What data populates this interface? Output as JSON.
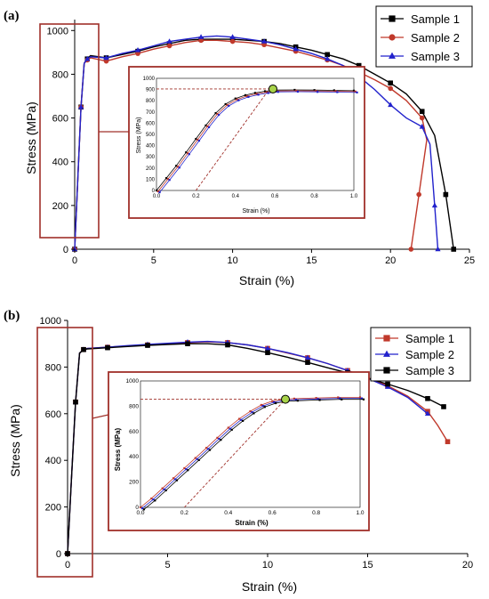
{
  "chart_data": [
    {
      "panel": "(a)",
      "type": "line",
      "xlabel": "Strain (%)",
      "ylabel": "Stress (MPa)",
      "xlim": [
        0,
        25
      ],
      "ylim": [
        0,
        1050
      ],
      "xticks": [
        "0",
        "5",
        "10",
        "15",
        "20",
        "25"
      ],
      "yticks": [
        "0",
        "200",
        "400",
        "600",
        "800",
        "1000"
      ],
      "legend_position": "top-right",
      "series": [
        {
          "name": "Sample 1",
          "color": "#000000",
          "marker": "square",
          "x": [
            0,
            0.2,
            0.4,
            0.6,
            0.8,
            1,
            2,
            3,
            4,
            5,
            6,
            7,
            8,
            9,
            10,
            11,
            12,
            13,
            14,
            15,
            16,
            17,
            18,
            19,
            20,
            21,
            22,
            22.8,
            23.5,
            24
          ],
          "y": [
            0,
            330,
            650,
            850,
            870,
            885,
            875,
            890,
            905,
            925,
            940,
            955,
            960,
            960,
            960,
            955,
            950,
            940,
            925,
            910,
            890,
            870,
            840,
            800,
            760,
            710,
            630,
            520,
            250,
            0
          ]
        },
        {
          "name": "Sample 2",
          "color": "#c0392b",
          "marker": "circle",
          "x": [
            0,
            0.2,
            0.4,
            0.6,
            0.8,
            1,
            2,
            3,
            4,
            5,
            6,
            7,
            8,
            9,
            10,
            11,
            12,
            13,
            14,
            15,
            16,
            17,
            18,
            19,
            20,
            21,
            22,
            22.3,
            21.8,
            21.3
          ],
          "y": [
            0,
            330,
            650,
            850,
            865,
            875,
            860,
            880,
            895,
            915,
            930,
            945,
            955,
            955,
            950,
            945,
            935,
            920,
            905,
            885,
            865,
            840,
            810,
            775,
            735,
            680,
            600,
            500,
            250,
            0
          ]
        },
        {
          "name": "Sample 3",
          "color": "#2222cc",
          "marker": "triangle",
          "x": [
            0,
            0.2,
            0.4,
            0.6,
            0.8,
            1,
            2,
            3,
            4,
            5,
            6,
            7,
            8,
            9,
            10,
            11,
            12,
            13,
            14,
            15,
            16,
            17,
            18,
            19,
            20,
            21,
            22,
            22.5,
            22.8,
            23
          ],
          "y": [
            0,
            330,
            650,
            850,
            870,
            880,
            875,
            895,
            910,
            930,
            950,
            960,
            970,
            975,
            970,
            960,
            950,
            935,
            915,
            895,
            870,
            840,
            790,
            730,
            660,
            600,
            560,
            480,
            200,
            0
          ]
        }
      ],
      "inset": {
        "xlabel": "Strain (%)",
        "ylabel": "Stress (MPa)",
        "xlim": [
          0,
          1.0
        ],
        "ylim": [
          0,
          1000
        ],
        "xticks": [
          "0.0",
          "0.2",
          "0.4",
          "0.6",
          "0.8",
          "1.0"
        ],
        "yticks": [
          "0",
          "100",
          "200",
          "300",
          "400",
          "500",
          "600",
          "700",
          "800",
          "900",
          "1000"
        ],
        "x": [
          0,
          0.05,
          0.1,
          0.15,
          0.2,
          0.25,
          0.3,
          0.35,
          0.4,
          0.45,
          0.5,
          0.55,
          0.6,
          0.7,
          0.8,
          0.9,
          1.0
        ],
        "y": [
          0,
          110,
          220,
          340,
          460,
          580,
          690,
          770,
          820,
          850,
          870,
          885,
          895,
          897,
          895,
          893,
          890
        ],
        "offset_line": {
          "x": [
            0.2,
            0.57
          ],
          "y": [
            0,
            900
          ]
        },
        "yield_point": {
          "x": 0.59,
          "y": 905
        },
        "yield_stress_line_y": 905
      }
    },
    {
      "panel": "(b)",
      "type": "line",
      "xlabel": "Strain (%)",
      "ylabel": "Stress (MPa)",
      "xlim": [
        0,
        20
      ],
      "ylim": [
        0,
        1000
      ],
      "xticks": [
        "0",
        "5",
        "10",
        "15",
        "20"
      ],
      "yticks": [
        "0",
        "200",
        "400",
        "600",
        "800",
        "1000"
      ],
      "legend_position": "right",
      "series": [
        {
          "name": "Sample 1",
          "color": "#c0392b",
          "marker": "square",
          "x": [
            0,
            0.2,
            0.4,
            0.6,
            0.8,
            1,
            2,
            3,
            4,
            5,
            6,
            7,
            8,
            9,
            10,
            11,
            12,
            13,
            14,
            15,
            16,
            17,
            18,
            18.5,
            19
          ],
          "y": [
            0,
            330,
            650,
            860,
            875,
            880,
            885,
            890,
            895,
            900,
            905,
            908,
            905,
            895,
            880,
            860,
            840,
            815,
            785,
            755,
            720,
            675,
            610,
            550,
            480
          ]
        },
        {
          "name": "Sample 2",
          "color": "#2222cc",
          "marker": "triangle",
          "x": [
            0,
            0.2,
            0.4,
            0.6,
            0.8,
            1,
            2,
            3,
            4,
            5,
            6,
            7,
            8,
            9,
            10,
            11,
            12,
            13,
            14,
            15,
            16,
            17,
            18
          ],
          "y": [
            0,
            330,
            650,
            860,
            875,
            880,
            885,
            892,
            897,
            902,
            907,
            910,
            905,
            895,
            880,
            862,
            840,
            815,
            785,
            752,
            715,
            670,
            600
          ]
        },
        {
          "name": "Sample 3",
          "color": "#000000",
          "marker": "square",
          "x": [
            0,
            0.2,
            0.4,
            0.6,
            0.8,
            1,
            2,
            3,
            4,
            5,
            6,
            7,
            8,
            9,
            10,
            11,
            12,
            13,
            14,
            15,
            16,
            17,
            18,
            18.8
          ],
          "y": [
            0,
            330,
            650,
            860,
            875,
            878,
            883,
            888,
            893,
            897,
            900,
            900,
            895,
            880,
            862,
            842,
            820,
            797,
            775,
            752,
            727,
            700,
            665,
            630
          ]
        }
      ],
      "inset": {
        "xlabel": "Strain (%)",
        "ylabel": "Stress (MPa)",
        "xlim": [
          0,
          1.0
        ],
        "ylim": [
          0,
          1000
        ],
        "xticks": [
          "0.0",
          "0.2",
          "0.4",
          "0.6",
          "0.8",
          "1.0"
        ],
        "yticks": [
          "0",
          "200",
          "400",
          "600",
          "800",
          "1000"
        ],
        "x": [
          0,
          0.05,
          0.1,
          0.15,
          0.2,
          0.25,
          0.3,
          0.35,
          0.4,
          0.45,
          0.5,
          0.55,
          0.6,
          0.65,
          0.7,
          0.8,
          0.9,
          1.0
        ],
        "y": [
          0,
          70,
          150,
          230,
          310,
          390,
          470,
          550,
          630,
          700,
          760,
          810,
          840,
          855,
          860,
          865,
          870,
          870
        ],
        "offset_line": {
          "x": [
            0.2,
            0.66
          ],
          "y": [
            0,
            855
          ]
        },
        "yield_point": {
          "x": 0.66,
          "y": 855
        },
        "yield_stress_line_y": 855
      }
    }
  ]
}
